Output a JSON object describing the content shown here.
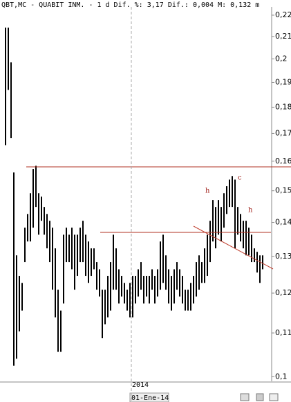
{
  "chart_data": {
    "type": "range",
    "title": "QBT,MC - QUABIT INM. -  1 d Dif. %: 3,17 Dif.: 0,004 M: 0,132 m",
    "categories": [
      null,
      null,
      null,
      null,
      null,
      null,
      null,
      null,
      null,
      null,
      null,
      null,
      null,
      null,
      null,
      null,
      null,
      null,
      null,
      null,
      null,
      null,
      null,
      null,
      null,
      null,
      null,
      null,
      null,
      null,
      null,
      null,
      null,
      null,
      null,
      null,
      null,
      null,
      null,
      null,
      null,
      null,
      null,
      null,
      null,
      "2014",
      null,
      null,
      null,
      null,
      null,
      null,
      null,
      null,
      null,
      null,
      null,
      null,
      null,
      null,
      null,
      null,
      null,
      null,
      null,
      null,
      null,
      null,
      null,
      null,
      null,
      null,
      null,
      null,
      null,
      null,
      null,
      null,
      null,
      null,
      null,
      null,
      null,
      null,
      null,
      null,
      null,
      null,
      null,
      null,
      null,
      null,
      null,
      null
    ],
    "high": [
      0.2141,
      0.2141,
      0.1985,
      0.1561,
      0.1303,
      0.1246,
      0.1227,
      0.1384,
      0.1426,
      0.1492,
      0.1573,
      0.1584,
      0.1492,
      0.1481,
      0.1448,
      0.1426,
      0.1405,
      0.1384,
      0.1323,
      0.1209,
      0.1155,
      0.1363,
      0.1384,
      0.1363,
      0.1384,
      0.1363,
      0.1363,
      0.1384,
      0.1405,
      0.1363,
      0.1343,
      0.1323,
      0.1323,
      0.1284,
      0.1264,
      0.1209,
      0.1209,
      0.1246,
      0.1284,
      0.1363,
      0.1323,
      0.1264,
      0.1246,
      0.1227,
      0.1209,
      0.1227,
      0.1246,
      0.1246,
      0.1264,
      0.1284,
      0.1246,
      0.1246,
      0.1246,
      0.1264,
      0.1246,
      0.1264,
      0.1343,
      0.1363,
      0.1303,
      0.1264,
      0.1246,
      0.1264,
      0.1284,
      0.1264,
      0.1246,
      0.1209,
      0.1209,
      0.1227,
      0.1246,
      0.1284,
      0.1303,
      0.1284,
      0.1323,
      0.1363,
      0.1405,
      0.147,
      0.1448,
      0.147,
      0.1448,
      0.1492,
      0.1515,
      0.1537,
      0.1549,
      0.1537,
      0.1448,
      0.1426,
      0.1405,
      0.1405,
      0.1384,
      0.1363,
      0.1323,
      0.1313,
      0.1303,
      0.1303
    ],
    "low": [
      0.1657,
      0.1869,
      0.1683,
      0.1024,
      0.104,
      0.1104,
      0.1155,
      0.1284,
      0.1343,
      0.1343,
      0.1384,
      0.1448,
      0.1363,
      0.1405,
      0.1363,
      0.1323,
      0.1284,
      0.1209,
      0.1138,
      0.1056,
      0.1056,
      0.1173,
      0.1284,
      0.1284,
      0.1264,
      0.1209,
      0.1246,
      0.1284,
      0.1284,
      0.1246,
      0.1227,
      0.1246,
      0.1264,
      0.1209,
      0.1191,
      0.1088,
      0.1121,
      0.1138,
      0.1155,
      0.1209,
      0.1209,
      0.1173,
      0.1191,
      0.1173,
      0.1155,
      0.1138,
      0.1138,
      0.1173,
      0.1191,
      0.1209,
      0.1173,
      0.1191,
      0.1173,
      0.1209,
      0.1173,
      0.1191,
      0.1209,
      0.1227,
      0.1209,
      0.1173,
      0.1155,
      0.1173,
      0.1209,
      0.1191,
      0.1173,
      0.1155,
      0.1155,
      0.1155,
      0.1173,
      0.1191,
      0.1209,
      0.1227,
      0.1227,
      0.1246,
      0.1284,
      0.1343,
      0.1323,
      0.1363,
      0.1343,
      0.1384,
      0.1426,
      0.1448,
      0.1448,
      0.1323,
      0.1363,
      0.1343,
      0.1323,
      0.1303,
      0.1303,
      0.1284,
      0.1284,
      0.1255,
      0.1227,
      0.1264
    ],
    "color": "#000000",
    "log_scale": true,
    "ylim": [
      0.099,
      0.224
    ],
    "yticks": [
      {
        "value": 0.22,
        "label": "0,22"
      },
      {
        "value": 0.21,
        "label": "0,21"
      },
      {
        "value": 0.2,
        "label": "0,2"
      },
      {
        "value": 0.19,
        "label": "0,19"
      },
      {
        "value": 0.18,
        "label": "0,18"
      },
      {
        "value": 0.17,
        "label": "0,17"
      },
      {
        "value": 0.16,
        "label": "0,16"
      },
      {
        "value": 0.15,
        "label": "0,15"
      },
      {
        "value": 0.14,
        "label": "0,14"
      },
      {
        "value": 0.13,
        "label": "0,13"
      },
      {
        "value": 0.12,
        "label": "0,12"
      },
      {
        "value": 0.11,
        "label": "0,11"
      },
      {
        "value": 0.1,
        "label": "0,1"
      }
    ],
    "annotations": [
      "h",
      "c",
      "h"
    ],
    "cursor_label": "01-Ene-14"
  }
}
